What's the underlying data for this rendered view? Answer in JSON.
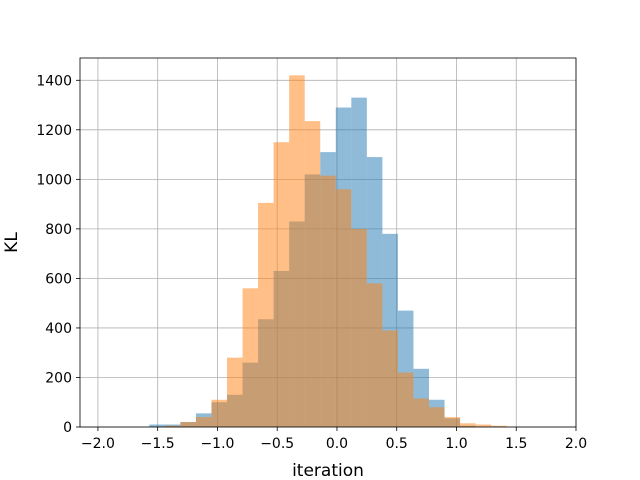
{
  "chart_data": {
    "type": "histogram",
    "xlabel": "iteration",
    "ylabel": "KL",
    "xlim": [
      -2.15,
      2.0
    ],
    "ylim": [
      0,
      1490
    ],
    "xticks": [
      -2.0,
      -1.5,
      -1.0,
      -0.5,
      0.0,
      0.5,
      1.0,
      1.5,
      2.0
    ],
    "xtick_labels": [
      "−2.0",
      "−1.5",
      "−1.0",
      "−0.5",
      "0.0",
      "0.5",
      "1.0",
      "1.5",
      "2.0"
    ],
    "yticks": [
      0,
      200,
      400,
      600,
      800,
      1000,
      1200,
      1400
    ],
    "ytick_labels": [
      "0",
      "200",
      "400",
      "600",
      "800",
      "1000",
      "1200",
      "1400"
    ],
    "grid": true,
    "series": [
      {
        "color": "#1f77b4",
        "alpha": 0.5,
        "bin_edges": [
          -1.57,
          -1.44,
          -1.31,
          -1.18,
          -1.05,
          -0.92,
          -0.79,
          -0.66,
          -0.53,
          -0.4,
          -0.27,
          -0.14,
          -0.01,
          0.12,
          0.25,
          0.38,
          0.51,
          0.64,
          0.77,
          0.9,
          1.03,
          1.16
        ],
        "counts": [
          10,
          10,
          20,
          55,
          100,
          130,
          260,
          435,
          630,
          830,
          1020,
          1110,
          1290,
          1330,
          1090,
          780,
          470,
          235,
          110,
          35,
          5
        ]
      },
      {
        "color": "#ff7f0e",
        "alpha": 0.5,
        "bin_edges": [
          -1.44,
          -1.31,
          -1.18,
          -1.05,
          -0.92,
          -0.79,
          -0.66,
          -0.53,
          -0.4,
          -0.27,
          -0.14,
          -0.01,
          0.12,
          0.25,
          0.38,
          0.51,
          0.64,
          0.77,
          0.9,
          1.03,
          1.16,
          1.29,
          1.42
        ],
        "counts": [
          5,
          20,
          40,
          110,
          280,
          560,
          905,
          1150,
          1420,
          1235,
          1015,
          960,
          800,
          580,
          390,
          220,
          115,
          80,
          40,
          15,
          10,
          5
        ]
      }
    ]
  }
}
